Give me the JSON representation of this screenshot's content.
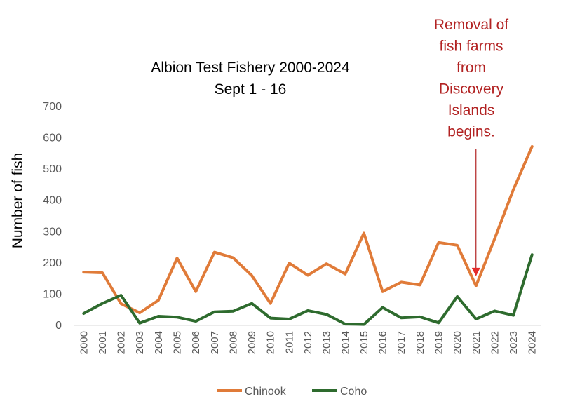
{
  "chart_data": {
    "type": "line",
    "title": "Albion Test Fishery 2000-2024",
    "subtitle": "Sept 1 - 16",
    "xlabel": "",
    "ylabel": "Number of fish",
    "ylim": [
      0,
      700
    ],
    "yticks": [
      "0",
      "100",
      "200",
      "300",
      "400",
      "500",
      "600",
      "700"
    ],
    "categories": [
      "2000",
      "2001",
      "2002",
      "2003",
      "2004",
      "2005",
      "2006",
      "2007",
      "2008",
      "2009",
      "2010",
      "2011",
      "2012",
      "2013",
      "2014",
      "2015",
      "2016",
      "2017",
      "2018",
      "2019",
      "2020",
      "2021",
      "2022",
      "2023",
      "2024"
    ],
    "grid": false,
    "legend_position": "bottom",
    "series": [
      {
        "name": "Chinook",
        "color": "#e07b39",
        "values": [
          168,
          166,
          67,
          38,
          78,
          213,
          106,
          232,
          214,
          157,
          68,
          197,
          158,
          195,
          162,
          293,
          106,
          136,
          127,
          263,
          254,
          124,
          275,
          432,
          570
        ]
      },
      {
        "name": "Coho",
        "color": "#2e6b2e",
        "values": [
          36,
          68,
          94,
          5,
          27,
          24,
          11,
          41,
          43,
          68,
          21,
          18,
          45,
          33,
          2,
          1,
          55,
          22,
          25,
          6,
          90,
          18,
          44,
          30,
          224
        ]
      }
    ],
    "annotation": {
      "lines": [
        "Removal of",
        "fish farms",
        "from",
        "Discovery",
        "Islands",
        "begins."
      ],
      "color": "#b22222",
      "arrow_target_year": "2021",
      "arrow_target_value": 200
    }
  }
}
